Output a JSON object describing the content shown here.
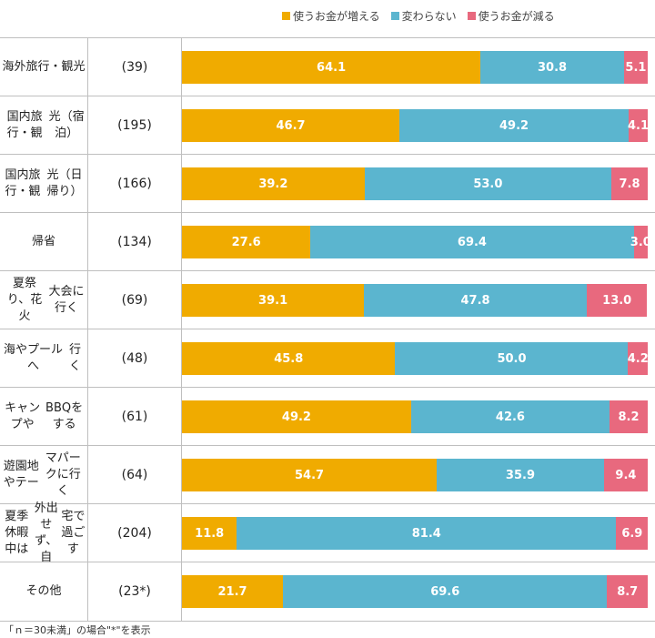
{
  "colors": {
    "increase": "#f0ab00",
    "same": "#5bb5cf",
    "decrease": "#e8697e"
  },
  "chart_data": {
    "type": "bar",
    "orientation": "horizontal",
    "stacked": true,
    "legend_position": "top",
    "categories": [
      [
        "海外旅行・観",
        "光"
      ],
      [
        "国内旅行・観",
        "光（宿泊）"
      ],
      [
        "国内旅行・観",
        "光（日帰り）"
      ],
      [
        "帰省"
      ],
      [
        "夏祭り、花火",
        "大会に行く"
      ],
      [
        "海やプールへ",
        "行く"
      ],
      [
        "キャンプや",
        "BBQをする"
      ],
      [
        "遊園地やテー",
        "マパークに行く"
      ],
      [
        "夏季休暇中は",
        "外出せず、自",
        "宅で過ごす"
      ],
      [
        "その他"
      ]
    ],
    "n_labels": [
      "(39)",
      "(195)",
      "(166)",
      "(134)",
      "(69)",
      "(48)",
      "(61)",
      "(64)",
      "(204)",
      "(23*)"
    ],
    "series": [
      {
        "name": "使うお金が増える",
        "values": [
          64.1,
          46.7,
          39.2,
          27.6,
          39.1,
          45.8,
          49.2,
          54.7,
          11.8,
          21.7
        ]
      },
      {
        "name": "変わらない",
        "values": [
          30.8,
          49.2,
          53.0,
          69.4,
          47.8,
          50.0,
          42.6,
          35.9,
          81.4,
          69.6
        ]
      },
      {
        "name": "使うお金が減る",
        "values": [
          5.1,
          4.1,
          7.8,
          3.0,
          13.0,
          4.2,
          8.2,
          9.4,
          6.9,
          8.7
        ]
      }
    ],
    "xlim": [
      0,
      100
    ]
  },
  "footnote": "「ｎ＝30未満」の場合\"*\"を表示"
}
